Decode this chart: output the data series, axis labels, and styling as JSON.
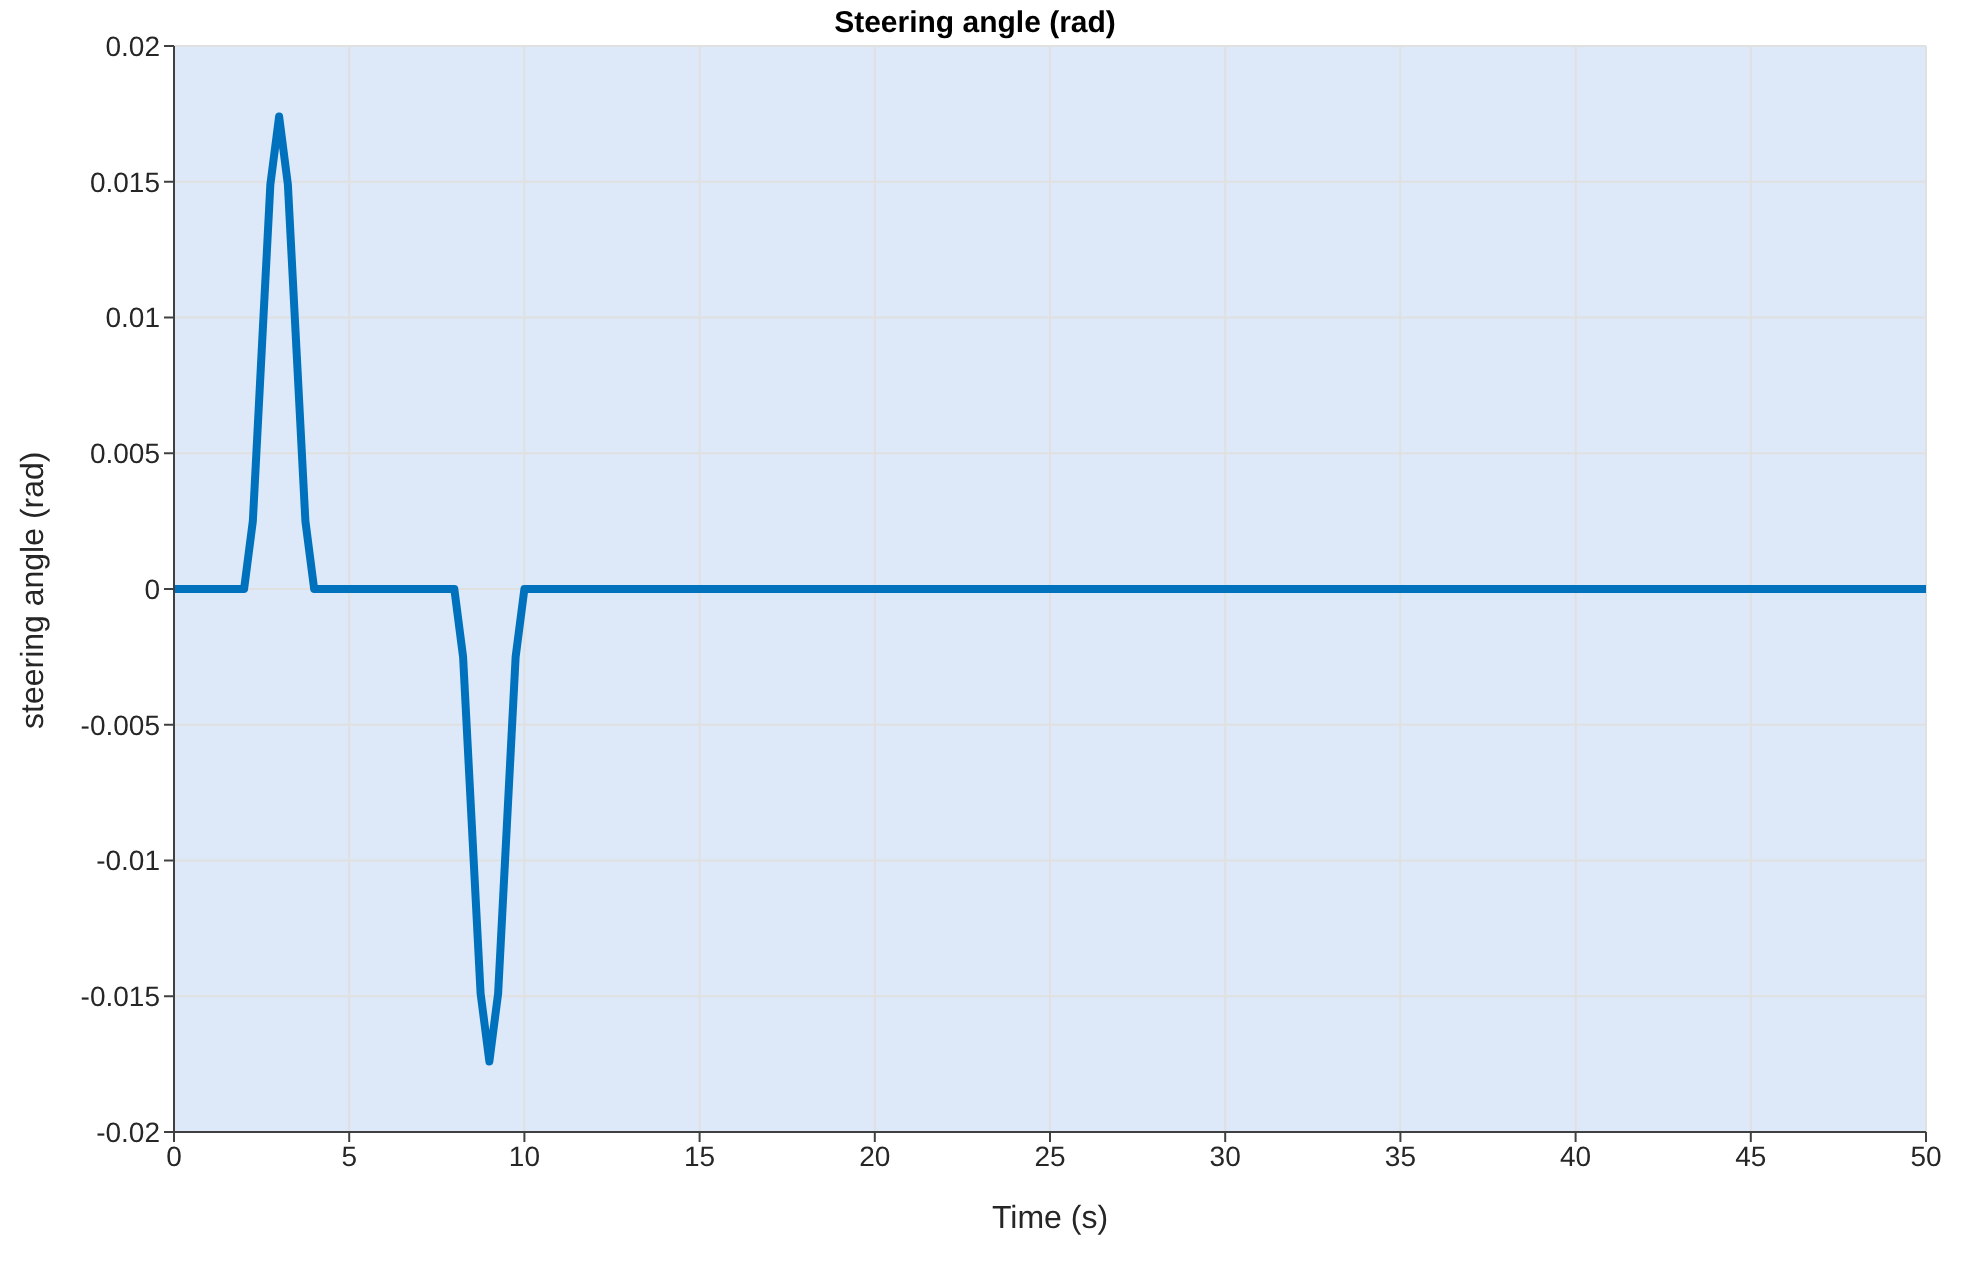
{
  "chart_data": {
    "type": "line",
    "title": "Steering angle (rad)",
    "xlabel": "Time (s)",
    "ylabel": "steering angle (rad)",
    "series": [
      {
        "color": "#0072bd",
        "x": [
          0,
          2,
          2.25,
          2.5,
          2.75,
          3,
          3.25,
          3.5,
          3.75,
          4,
          8,
          8.25,
          8.5,
          8.75,
          9,
          9.25,
          9.5,
          9.75,
          10,
          50
        ],
        "values": [
          0,
          0,
          0.0025,
          0.0087,
          0.0149,
          0.0174,
          0.0149,
          0.0087,
          0.0025,
          0,
          0,
          -0.0025,
          -0.0087,
          -0.0149,
          -0.0174,
          -0.0149,
          -0.0087,
          -0.0025,
          0,
          0
        ]
      }
    ],
    "xlim": [
      0,
      50
    ],
    "xticks": [
      0,
      5,
      10,
      15,
      20,
      25,
      30,
      35,
      40,
      45,
      50
    ],
    "ylim": [
      -0.02,
      0.02
    ],
    "yticks": [
      -0.02,
      -0.015,
      -0.01,
      -0.005,
      0,
      0.005,
      0.01,
      0.015,
      0.02
    ],
    "grid": true,
    "marker": "none",
    "line_style": "solid"
  }
}
